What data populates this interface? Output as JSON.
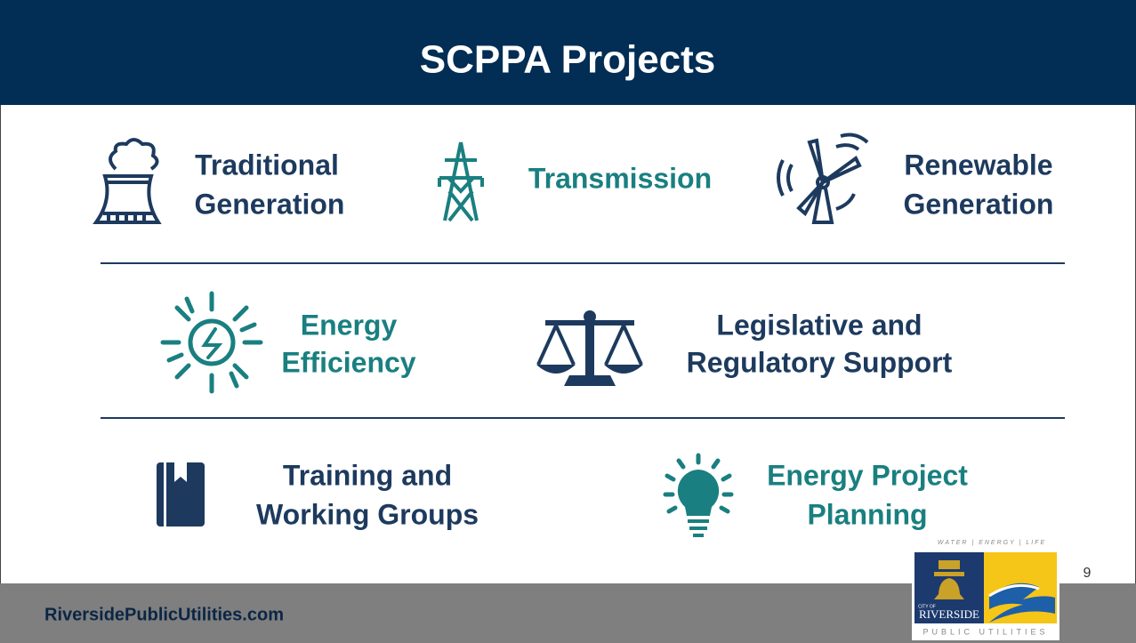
{
  "header": {
    "title": "SCPPA Projects"
  },
  "items": [
    {
      "lines": [
        "Traditional",
        "Generation"
      ]
    },
    {
      "lines": [
        "Transmission"
      ]
    },
    {
      "lines": [
        "Renewable",
        "Generation"
      ]
    },
    {
      "lines": [
        "Energy",
        "Efficiency"
      ]
    },
    {
      "lines": [
        "Legislative and",
        "Regulatory Support"
      ]
    },
    {
      "lines": [
        "Training and",
        "Working Groups"
      ]
    },
    {
      "lines": [
        "Energy Project",
        "Planning"
      ]
    }
  ],
  "footer": {
    "website": "RiversidePublicUtilities.com",
    "page_number": "9"
  },
  "logo": {
    "tagline": "WATER | ENERGY | LIFE",
    "city_of": "CITY OF",
    "city": "RIVERSIDE",
    "utility": "PUBLIC UTILITIES"
  }
}
